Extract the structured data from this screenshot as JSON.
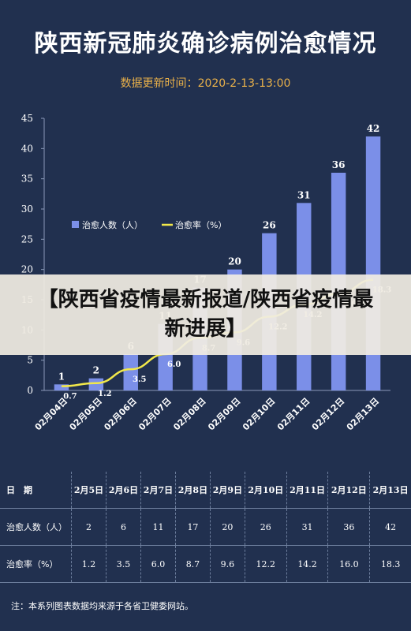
{
  "title": "陕西新冠肺炎确诊病例治愈情况",
  "update_label": "数据更新时间：",
  "update_time": "2020-2-13-13:00",
  "banner": "【陕西省疫情最新报道/陕西省疫情最新进展】",
  "colors": {
    "bar": "#7b8fe8",
    "line": "#f2e84a",
    "background": "#21304f",
    "accent": "#e8b04a"
  },
  "chart_data": {
    "type": "bar",
    "categories": [
      "02月04日",
      "02月05日",
      "02月06日",
      "02月07日",
      "02月08日",
      "02月09日",
      "02月10日",
      "02月11日",
      "02月12日",
      "02月13日"
    ],
    "series": [
      {
        "name": "治愈人数（人）",
        "type": "bar",
        "values": [
          1,
          2,
          6,
          11,
          17,
          20,
          26,
          31,
          36,
          42
        ]
      },
      {
        "name": "治愈率（%）",
        "type": "line",
        "values": [
          0.7,
          1.2,
          3.5,
          6.0,
          8.7,
          9.6,
          12.2,
          14.2,
          16.0,
          18.3
        ]
      }
    ],
    "ylim": [
      0,
      45
    ],
    "yticks": [
      "0",
      "5",
      "10",
      "15",
      "20",
      "25",
      "30",
      "35",
      "40",
      "45"
    ],
    "legend_position": "left",
    "grid": false
  },
  "table": {
    "header_label": "日　期",
    "dates": [
      "2月5日",
      "2月6日",
      "2月7日",
      "2月8日",
      "2月9日",
      "2月10日",
      "2月11日",
      "2月12日",
      "2月13日"
    ],
    "rows": [
      {
        "label": "治愈人数（人）",
        "values": [
          "2",
          "6",
          "11",
          "17",
          "20",
          "26",
          "31",
          "36",
          "42"
        ]
      },
      {
        "label": "治愈率（%）",
        "values": [
          "1.2",
          "3.5",
          "6.0",
          "8.7",
          "9.6",
          "12.2",
          "14.2",
          "16.0",
          "18.3"
        ]
      }
    ]
  },
  "note": "注：本系列图表数据均来源于各省卫健委网站。"
}
